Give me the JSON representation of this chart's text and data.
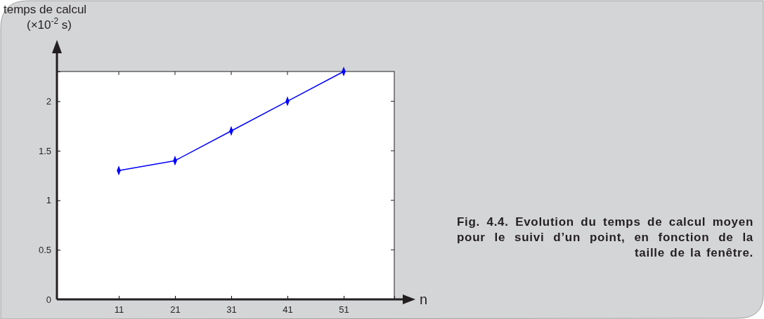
{
  "chart_data": {
    "type": "line",
    "xlabel": "n",
    "ylabel": "temps de calcul\n(×10$^{-2}$ s)",
    "x": [
      11,
      21,
      31,
      41,
      51
    ],
    "series": [
      {
        "color": "#0000ff",
        "values": [
          1.3,
          1.4,
          1.7,
          2.0,
          2.3
        ]
      }
    ],
    "xlim": [
      0,
      60
    ],
    "xticks": [
      11,
      21,
      31,
      41,
      51
    ],
    "ylim": [
      0,
      2.3
    ],
    "yticks": [
      0,
      0.5,
      1,
      1.5,
      2
    ],
    "marker": "diamond",
    "line_style": "solid",
    "grid": false,
    "annotations": [
      "Fig. 4.4. Evolution du temps de calcul moyen pour le suivi d’un point, en fonction de la taille de la fenêtre."
    ]
  }
}
